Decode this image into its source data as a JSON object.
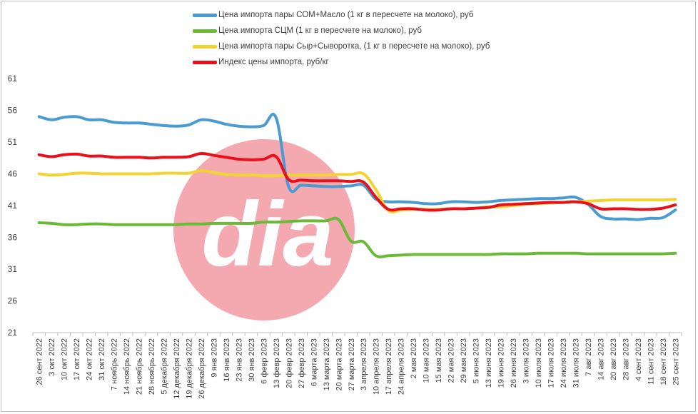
{
  "chart_data": {
    "type": "line",
    "title": "",
    "xlabel": "",
    "ylabel": "",
    "ylim": [
      21,
      61
    ],
    "yticks": [
      21,
      26,
      31,
      36,
      41,
      46,
      51,
      56,
      61
    ],
    "grid": false,
    "legend_position": "top",
    "categories": [
      "26 сент 2022",
      "3 окт 2022",
      "10 окт 2022",
      "17 окт 2022",
      "24 окт 2022",
      "31 окт 2022",
      "7 ноябрь 2022",
      "14 ноябрь 2022",
      "21 ноябрь 2022",
      "28 ноябрь 2022",
      "5 декабря 2022",
      "12 декабря 2022",
      "19 декабря 2022",
      "26 декабря 2022",
      "9 янв 2023",
      "16 янв 2023",
      "23 янв 2023",
      "30 янв 2023",
      "6 февр 2023",
      "13 февр 2023",
      "20 февр 2023",
      "27 февр 2023",
      "6 марта 2023",
      "13 марта 2023",
      "20 марта 2023",
      "27 марта 2023",
      "3 апреля 2023",
      "10 апреля 2023",
      "17 апреля 2023",
      "24 апреля 2023",
      "2 мая 2023",
      "10 мая 2023",
      "15 мая 2023",
      "22 мая 2023",
      "29 мая 2023",
      "5 июня 2023",
      "13 июня 2023",
      "19 июня 2023",
      "26 июня 2023",
      "3 июля 2023",
      "10 июля 2023",
      "17 июля 2023",
      "24 июля 2023",
      "31 июля 2023",
      "7 авг 2023",
      "14 авг 2023",
      "20 авг 2023",
      "28 авг 2023",
      "4 сент 2023",
      "11 сент 2023",
      "18 сент 2023",
      "25 сент 2023"
    ],
    "series": [
      {
        "name": "Цена импорта пары СОМ+Масло  (1 кг в пересчете на молоко), руб",
        "color": "#4a9bd1",
        "values": [
          55.0,
          54.5,
          54.9,
          55.0,
          54.5,
          54.5,
          54.1,
          54.0,
          54.0,
          53.8,
          53.6,
          53.5,
          53.7,
          54.5,
          54.3,
          53.8,
          53.5,
          53.4,
          53.6,
          54.8,
          44.0,
          44.2,
          44.1,
          44.0,
          44.0,
          44.1,
          44.2,
          42.0,
          41.6,
          41.6,
          41.5,
          41.3,
          41.3,
          41.6,
          41.6,
          41.5,
          41.6,
          41.8,
          41.9,
          42.0,
          42.1,
          42.1,
          42.2,
          42.3,
          41.2,
          39.3,
          38.9,
          38.9,
          38.8,
          39.0,
          39.1,
          40.3
        ]
      },
      {
        "name": "Цена импорта СЦМ (1 кг в пересчете на молоко), руб",
        "color": "#6aba38",
        "values": [
          38.3,
          38.2,
          38.0,
          38.0,
          38.1,
          38.1,
          38.0,
          38.0,
          38.0,
          38.0,
          38.0,
          38.0,
          38.1,
          38.1,
          38.2,
          38.2,
          38.2,
          38.2,
          38.4,
          38.4,
          38.5,
          38.6,
          38.6,
          38.6,
          38.8,
          35.4,
          35.3,
          33.1,
          33.1,
          33.2,
          33.3,
          33.3,
          33.3,
          33.3,
          33.3,
          33.3,
          33.3,
          33.4,
          33.4,
          33.4,
          33.5,
          33.5,
          33.5,
          33.5,
          33.4,
          33.4,
          33.4,
          33.4,
          33.4,
          33.4,
          33.4,
          33.5
        ]
      },
      {
        "name": "Цена импорта пары Сыр+Сыворотка, (1 кг в пересчете на молоко), руб",
        "color": "#f1d432",
        "values": [
          46.0,
          45.8,
          45.9,
          46.1,
          46.1,
          46.0,
          46.0,
          46.0,
          46.0,
          46.0,
          46.1,
          46.1,
          46.1,
          46.5,
          46.2,
          45.9,
          45.8,
          45.8,
          45.7,
          45.7,
          45.8,
          45.8,
          45.8,
          45.8,
          45.9,
          45.9,
          46.0,
          43.5,
          40.2,
          40.3,
          40.4,
          40.4,
          40.4,
          40.5,
          40.5,
          40.6,
          40.8,
          40.8,
          41.0,
          41.2,
          41.3,
          41.4,
          41.5,
          41.6,
          41.7,
          41.8,
          41.9,
          41.9,
          41.9,
          41.9,
          41.9,
          42.0
        ]
      },
      {
        "name": "Индекс цены импорта, руб/кг",
        "color": "#e8101a",
        "values": [
          49.0,
          48.7,
          49.0,
          49.1,
          48.8,
          48.8,
          48.6,
          48.6,
          48.6,
          48.5,
          48.6,
          48.6,
          48.7,
          49.2,
          48.9,
          48.6,
          48.3,
          48.2,
          48.3,
          48.7,
          45.1,
          45.0,
          44.9,
          44.9,
          44.9,
          44.8,
          44.7,
          42.3,
          40.4,
          40.5,
          40.5,
          40.3,
          40.3,
          40.5,
          40.5,
          40.6,
          40.7,
          41.1,
          41.2,
          41.3,
          41.4,
          41.5,
          41.5,
          41.6,
          41.3,
          40.5,
          40.5,
          40.5,
          40.4,
          40.4,
          40.6,
          41.1
        ]
      }
    ]
  },
  "colors": {
    "watermark_circle": "#f29aa2",
    "watermark_text": "#ffffff"
  },
  "watermark": {
    "text": "dia"
  }
}
